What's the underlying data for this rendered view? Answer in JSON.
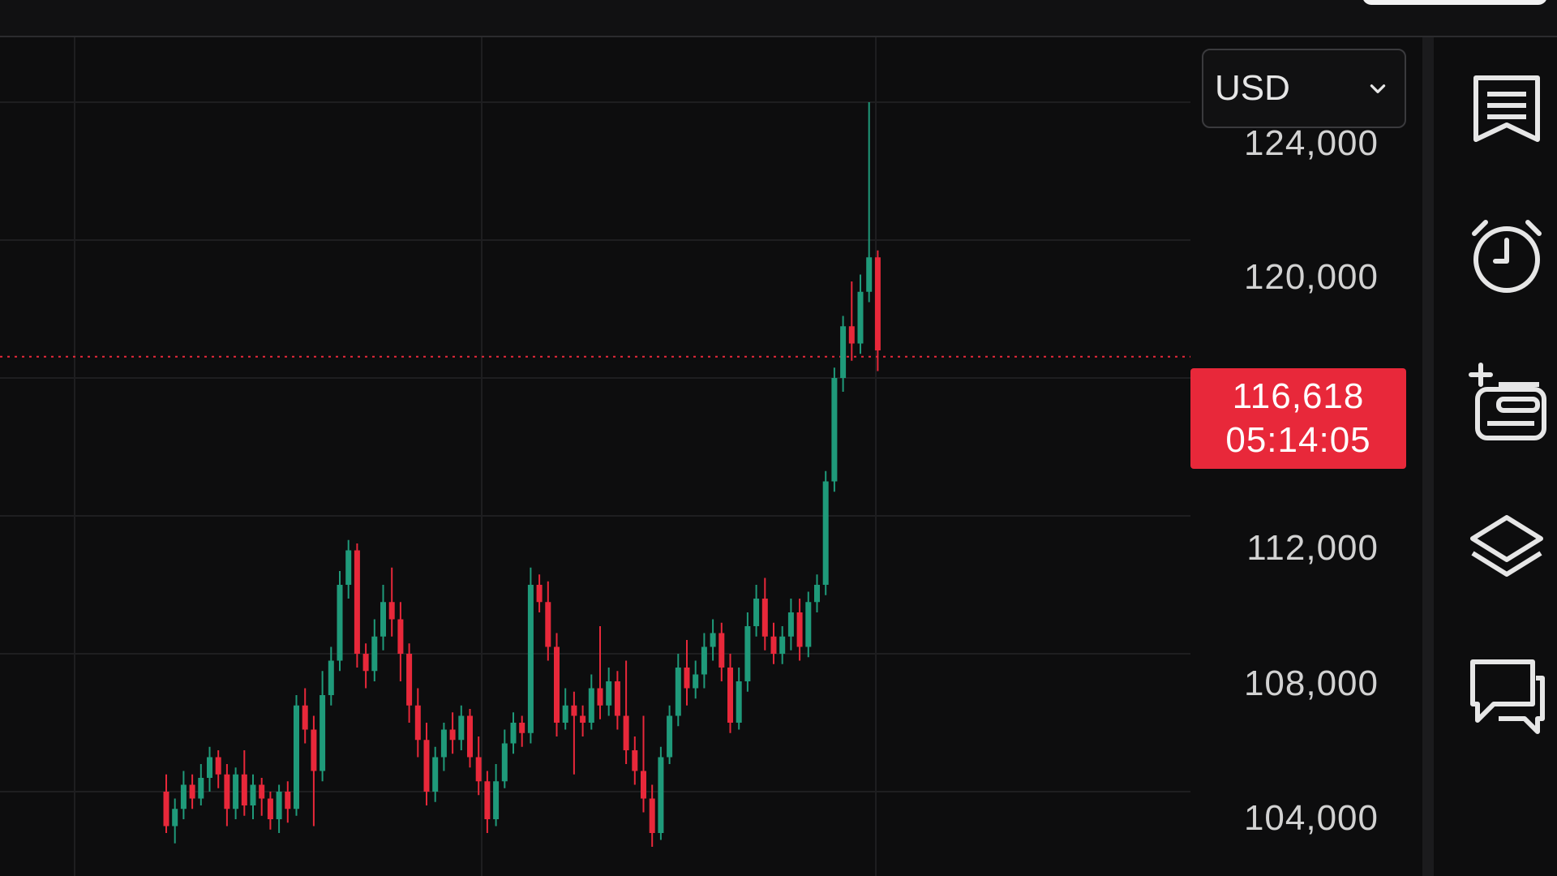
{
  "currency": {
    "selected": "USD"
  },
  "price_axis": {
    "labels": [
      "124,000",
      "120,000",
      "112,000",
      "108,000",
      "104,000"
    ]
  },
  "current_price": {
    "value": "116,618",
    "countdown": "05:14:05"
  },
  "colors": {
    "background": "#0d0d0e",
    "up": "#1f9a7a",
    "down": "#e8283a",
    "grid": "#1e1e20"
  },
  "toolbar": {
    "icons": [
      "watchlist-icon",
      "alarm-clock-icon",
      "add-list-icon",
      "layers-icon",
      "chat-icon"
    ]
  },
  "chart_data": {
    "type": "candlestick",
    "y_ticks": [
      104000,
      108000,
      112000,
      116000,
      120000,
      124000
    ],
    "current_price": 116618,
    "candles": [
      [
        104000,
        103000,
        104500,
        102800
      ],
      [
        103000,
        103500,
        103800,
        102500
      ],
      [
        103500,
        104200,
        104600,
        103200
      ],
      [
        104200,
        103800,
        104500,
        103500
      ],
      [
        103800,
        104400,
        104800,
        103600
      ],
      [
        104400,
        105000,
        105300,
        104000
      ],
      [
        105000,
        104500,
        105200,
        104100
      ],
      [
        104500,
        103500,
        104800,
        103000
      ],
      [
        103500,
        104500,
        104700,
        103200
      ],
      [
        104500,
        103600,
        105200,
        103300
      ],
      [
        103600,
        104200,
        104500,
        103200
      ],
      [
        104200,
        103800,
        104400,
        103300
      ],
      [
        103800,
        103200,
        104000,
        102900
      ],
      [
        103200,
        104000,
        104200,
        102800
      ],
      [
        104000,
        103500,
        104300,
        103100
      ],
      [
        103500,
        106500,
        106800,
        103300
      ],
      [
        106500,
        105800,
        107000,
        105400
      ],
      [
        105800,
        104600,
        106200,
        103000
      ],
      [
        104600,
        106800,
        107500,
        104300
      ],
      [
        106800,
        107800,
        108200,
        106500
      ],
      [
        107800,
        110000,
        110400,
        107500
      ],
      [
        110000,
        111000,
        111300,
        109600
      ],
      [
        111000,
        108000,
        111200,
        107600
      ],
      [
        108000,
        107500,
        108300,
        107000
      ],
      [
        107500,
        108500,
        109000,
        107200
      ],
      [
        108500,
        109500,
        110000,
        108100
      ],
      [
        109500,
        109000,
        110500,
        108500
      ],
      [
        109000,
        108000,
        109500,
        107200
      ],
      [
        108000,
        106500,
        108300,
        106000
      ],
      [
        106500,
        105500,
        107000,
        105000
      ],
      [
        105500,
        104000,
        106000,
        103600
      ],
      [
        104000,
        105000,
        105300,
        103700
      ],
      [
        105000,
        105800,
        106000,
        104600
      ],
      [
        105800,
        105500,
        106300,
        105100
      ],
      [
        105500,
        106200,
        106500,
        105200
      ],
      [
        106200,
        105000,
        106400,
        104700
      ],
      [
        105000,
        104300,
        105600,
        103900
      ],
      [
        104300,
        103200,
        104600,
        102800
      ],
      [
        103200,
        104300,
        104800,
        103000
      ],
      [
        104300,
        105400,
        105800,
        104100
      ],
      [
        105400,
        106000,
        106300,
        105100
      ],
      [
        106000,
        105700,
        106200,
        105300
      ],
      [
        105700,
        110000,
        110500,
        105400
      ],
      [
        110000,
        109500,
        110300,
        109200
      ],
      [
        109500,
        108200,
        110100,
        107800
      ],
      [
        108200,
        106000,
        108600,
        105600
      ],
      [
        106000,
        106500,
        107000,
        105800
      ],
      [
        106500,
        106200,
        106900,
        104500
      ],
      [
        106200,
        106000,
        106500,
        105600
      ],
      [
        106000,
        107000,
        107400,
        105800
      ],
      [
        107000,
        106500,
        108800,
        106100
      ],
      [
        106500,
        107200,
        107600,
        106200
      ],
      [
        107200,
        106200,
        107500,
        105800
      ],
      [
        106200,
        105200,
        107800,
        104800
      ],
      [
        105200,
        104600,
        105600,
        104200
      ],
      [
        104600,
        103800,
        106200,
        103400
      ],
      [
        103800,
        102800,
        104200,
        102400
      ],
      [
        102800,
        105000,
        105300,
        102600
      ],
      [
        105000,
        106200,
        106500,
        104800
      ],
      [
        106200,
        107600,
        108000,
        105900
      ],
      [
        107600,
        107000,
        108400,
        106500
      ],
      [
        107000,
        107400,
        107800,
        106700
      ],
      [
        107400,
        108200,
        108600,
        107000
      ],
      [
        108200,
        108600,
        109000,
        107800
      ],
      [
        108600,
        107600,
        108900,
        107200
      ],
      [
        107600,
        106000,
        108000,
        105700
      ],
      [
        106000,
        107200,
        107600,
        105800
      ],
      [
        107200,
        108800,
        109200,
        106900
      ],
      [
        108800,
        109600,
        110000,
        108500
      ],
      [
        109600,
        108500,
        110200,
        108100
      ],
      [
        108500,
        108000,
        108900,
        107700
      ],
      [
        108000,
        108500,
        108800,
        107700
      ],
      [
        108500,
        109200,
        109600,
        108100
      ],
      [
        109200,
        108200,
        109600,
        107800
      ],
      [
        108200,
        109500,
        109800,
        107900
      ],
      [
        109500,
        110000,
        110300,
        109200
      ],
      [
        110000,
        113000,
        113300,
        109700
      ],
      [
        113000,
        116000,
        116300,
        112700
      ],
      [
        116000,
        117500,
        117800,
        115600
      ],
      [
        117500,
        117000,
        118800,
        116500
      ],
      [
        117000,
        118500,
        119000,
        116700
      ],
      [
        118500,
        119500,
        124000,
        118200
      ],
      [
        119500,
        116800,
        119700,
        116200
      ]
    ]
  }
}
